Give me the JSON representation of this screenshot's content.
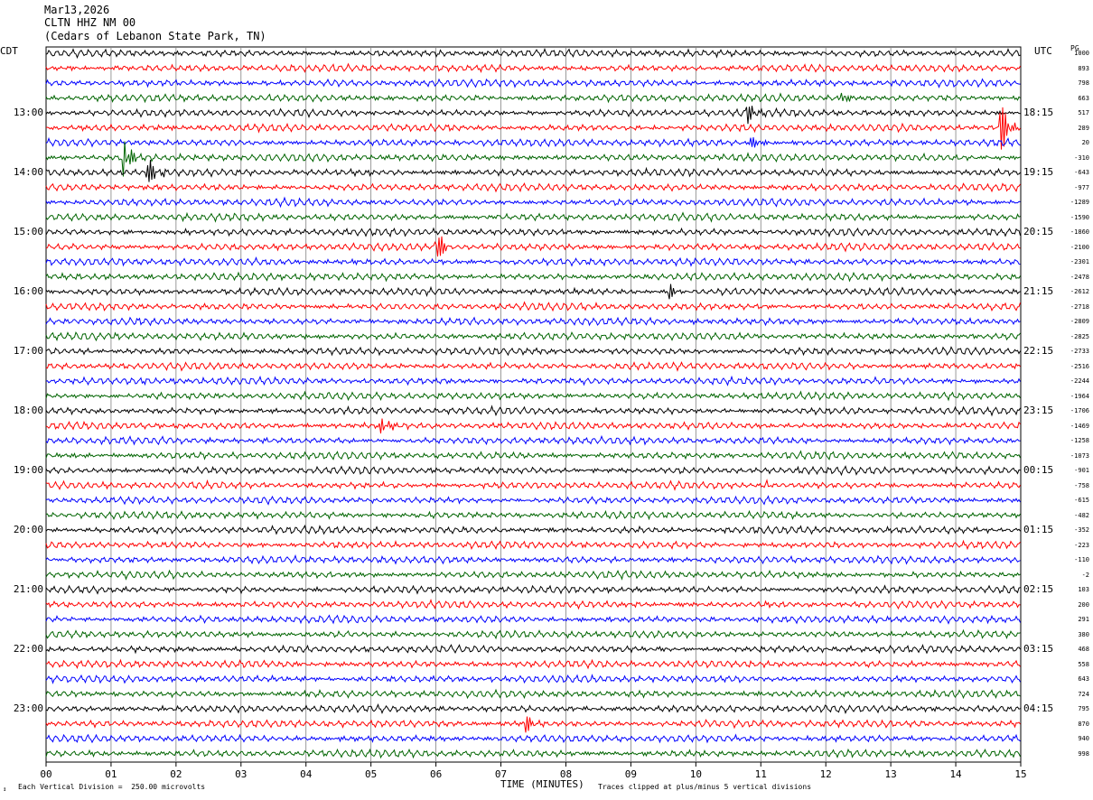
{
  "header": {
    "date": "Mar13,2026",
    "station": "CLTN HHZ NM 00",
    "location": "(Cedars of Lebanon State Park, TN)"
  },
  "zones": {
    "left": "CDT",
    "right": "UTC",
    "scale_label": "PG"
  },
  "footer": {
    "vertical_division": "Each Vertical Division =  250.00 microvolts",
    "clip_note": "Traces clipped at plus/minus 5 vertical divisions",
    "mark": "↕"
  },
  "colors": {
    "cycle": [
      "#000000",
      "#ff0000",
      "#0000ff",
      "#006400"
    ],
    "grid": "#808080"
  },
  "chart_data": {
    "type": "line",
    "title": "CLTN HHZ NM 00",
    "xlabel": "TIME (MINUTES)",
    "xlim": [
      0,
      15
    ],
    "x_ticks": [
      "00",
      "01",
      "02",
      "03",
      "04",
      "05",
      "06",
      "07",
      "08",
      "09",
      "10",
      "11",
      "12",
      "13",
      "14",
      "15"
    ],
    "left_time_labels": [
      "13:00",
      "14:00",
      "15:00",
      "16:00",
      "17:00",
      "18:00",
      "19:00",
      "20:00",
      "21:00",
      "22:00",
      "23:00"
    ],
    "right_time_labels": [
      "18:15",
      "19:15",
      "20:15",
      "21:15",
      "22:15",
      "23:15",
      "00:15",
      "01:15",
      "02:15",
      "03:15",
      "04:15"
    ],
    "trace_count": 48,
    "traces_per_hour": 4,
    "grid": true,
    "trace_scale_values": [
      "1000",
      "893",
      "798",
      "663",
      "517",
      "289",
      "20",
      "-310",
      "-643",
      "-977",
      "-1289",
      "-1590",
      "-1860",
      "-2100",
      "-2301",
      "-2478",
      "-2612",
      "-2718",
      "-2809",
      "-2825",
      "-2733",
      "-2516",
      "-2244",
      "-1964",
      "-1706",
      "-1469",
      "-1258",
      "-1073",
      "-901",
      "-758",
      "-615",
      "-482",
      "-352",
      "-223",
      "-110",
      "-2",
      "103",
      "200",
      "291",
      "380",
      "468",
      "558",
      "643",
      "724",
      "795",
      "870",
      "940",
      "998"
    ],
    "events": [
      {
        "trace": 4,
        "minute": 10.8,
        "amplitude": 1.0
      },
      {
        "trace": 3,
        "minute": 12.25,
        "amplitude": 1.0
      },
      {
        "trace": 5,
        "minute": 14.7,
        "amplitude": 3.5
      },
      {
        "trace": 6,
        "minute": 10.85,
        "amplitude": 0.8
      },
      {
        "trace": 7,
        "minute": 1.2,
        "amplitude": 3.0
      },
      {
        "trace": 8,
        "minute": 1.55,
        "amplitude": 2.0
      },
      {
        "trace": 13,
        "minute": 6.0,
        "amplitude": 2.5
      },
      {
        "trace": 16,
        "minute": 9.6,
        "amplitude": 1.0
      },
      {
        "trace": 25,
        "minute": 5.15,
        "amplitude": 1.0
      },
      {
        "trace": 29,
        "minute": 11.1,
        "amplitude": 0.7
      },
      {
        "trace": 45,
        "minute": 7.4,
        "amplitude": 0.9
      }
    ]
  }
}
